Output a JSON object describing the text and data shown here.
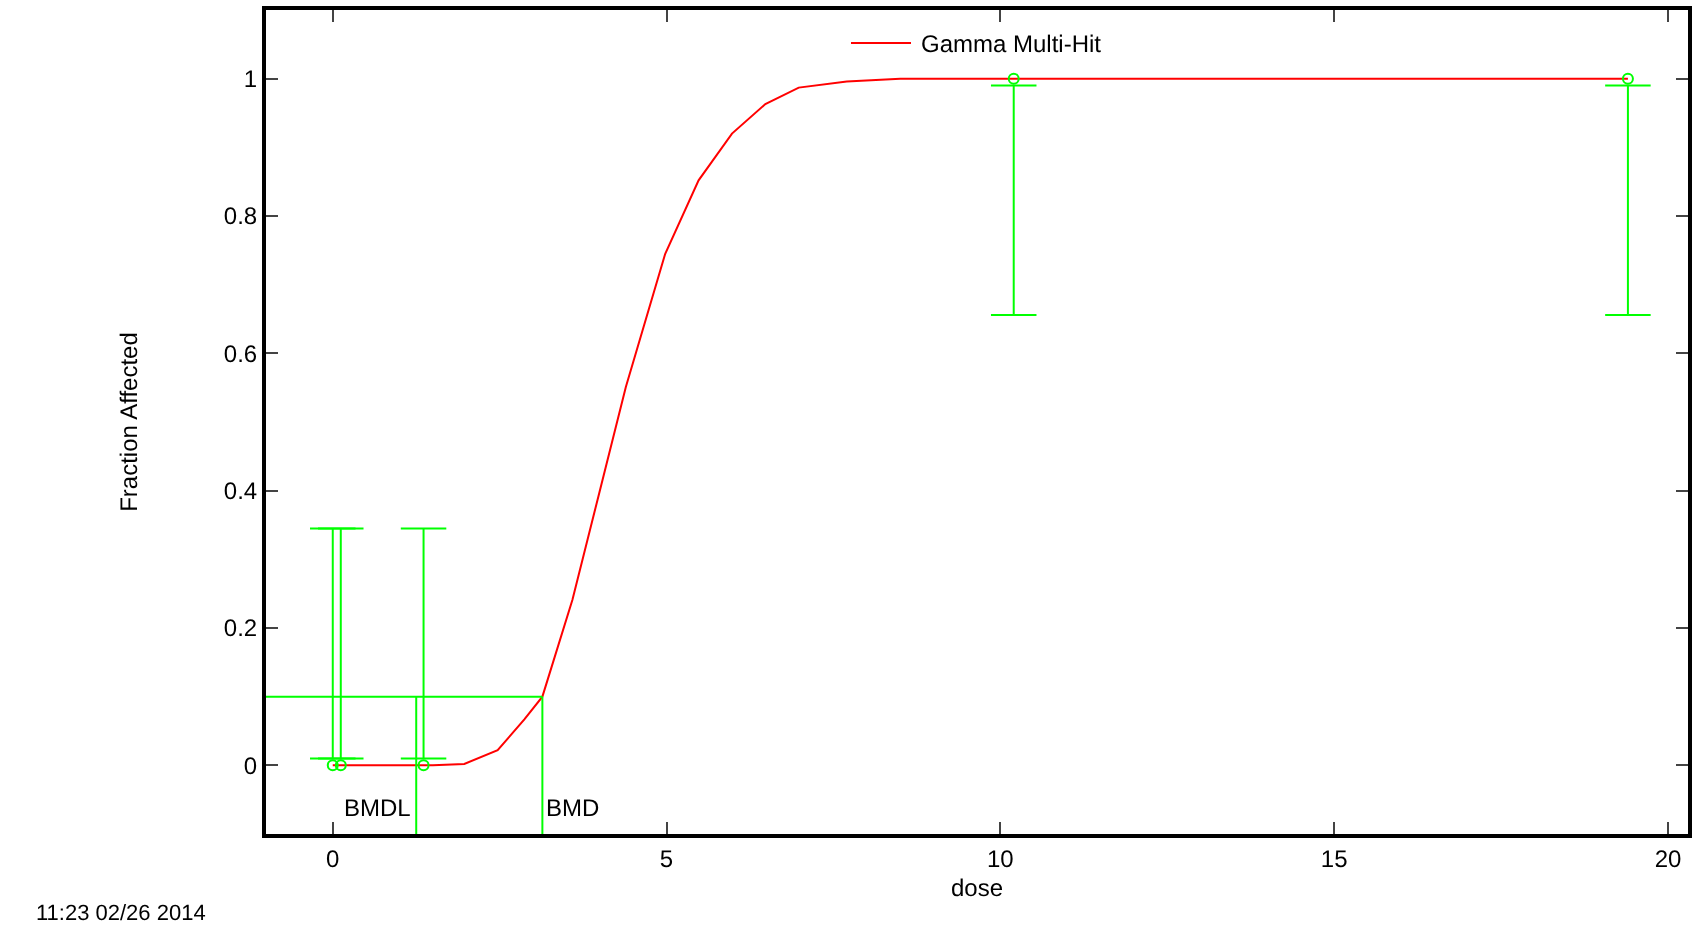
{
  "chart_data": {
    "type": "line",
    "xlabel": "dose",
    "ylabel": "Fraction Affected",
    "xlim": [
      -1,
      20.3
    ],
    "ylim": [
      -0.1,
      1.1
    ],
    "xticks": [
      0,
      5,
      10,
      15,
      20
    ],
    "yticks": [
      0,
      0.2,
      0.4,
      0.6,
      0.8,
      1
    ],
    "legend": "top",
    "series": [
      {
        "name": "Gamma Multi-Hit",
        "color": "#ff0000",
        "marker": "none",
        "line_style": "solid",
        "x": [
          0,
          1.5,
          1.97,
          2.47,
          2.87,
          3.14,
          3.59,
          3.99,
          4.39,
          4.98,
          5.48,
          5.98,
          6.48,
          6.98,
          7.7,
          8.5,
          10,
          15,
          19.4
        ],
        "values": [
          0,
          0,
          0.002,
          0.022,
          0.067,
          0.1,
          0.241,
          0.396,
          0.551,
          0.745,
          0.852,
          0.92,
          0.963,
          0.987,
          0.996,
          1,
          1,
          1,
          1
        ]
      },
      {
        "type": "scatter",
        "color": "#00ff00",
        "marker": "circle",
        "x": [
          0,
          0.12,
          1.36,
          10.2,
          19.4
        ],
        "values": [
          0,
          0,
          0,
          1,
          1
        ],
        "errors": [
          [
            0.01,
            0.345
          ],
          [
            0.01,
            0.345
          ],
          [
            0.01,
            0.345
          ],
          [
            0.656,
            0.99
          ],
          [
            0.656,
            0.99
          ]
        ]
      }
    ],
    "ref_lines": [
      {
        "axis": "y",
        "value": 0.1,
        "color": "#00ff00"
      },
      {
        "axis": "x",
        "value": 1.25,
        "label": "BMDL",
        "color": "#00ff00"
      },
      {
        "axis": "x",
        "value": 3.14,
        "label": "BMD",
        "color": "#00ff00"
      }
    ],
    "annotations": [
      "11:23 02/26 2014"
    ]
  }
}
